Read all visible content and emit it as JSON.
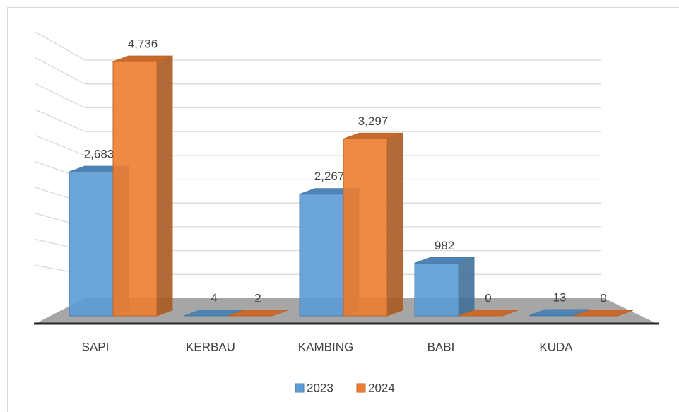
{
  "chart_data": {
    "type": "bar3d",
    "categories": [
      "SAPI",
      "KERBAU",
      "KAMBING",
      "BABI",
      "KUDA"
    ],
    "series": [
      {
        "name": "2023",
        "color": "#5b9bd5",
        "values": [
          2683,
          4,
          2267,
          982,
          13
        ],
        "value_labels": [
          "2,683",
          "4",
          "2,267",
          "982",
          "13"
        ]
      },
      {
        "name": "2024",
        "color": "#ed7d31",
        "values": [
          4736,
          2,
          3297,
          0,
          0
        ],
        "value_labels": [
          "4,736",
          "2",
          "3,297",
          "0",
          "0"
        ]
      }
    ],
    "ylim": [
      0,
      5000
    ],
    "yticks": [
      0,
      500,
      1000,
      1500,
      2000,
      2500,
      3000,
      3500,
      4000,
      4500,
      5000
    ],
    "grid": true,
    "legend": "bottom"
  }
}
